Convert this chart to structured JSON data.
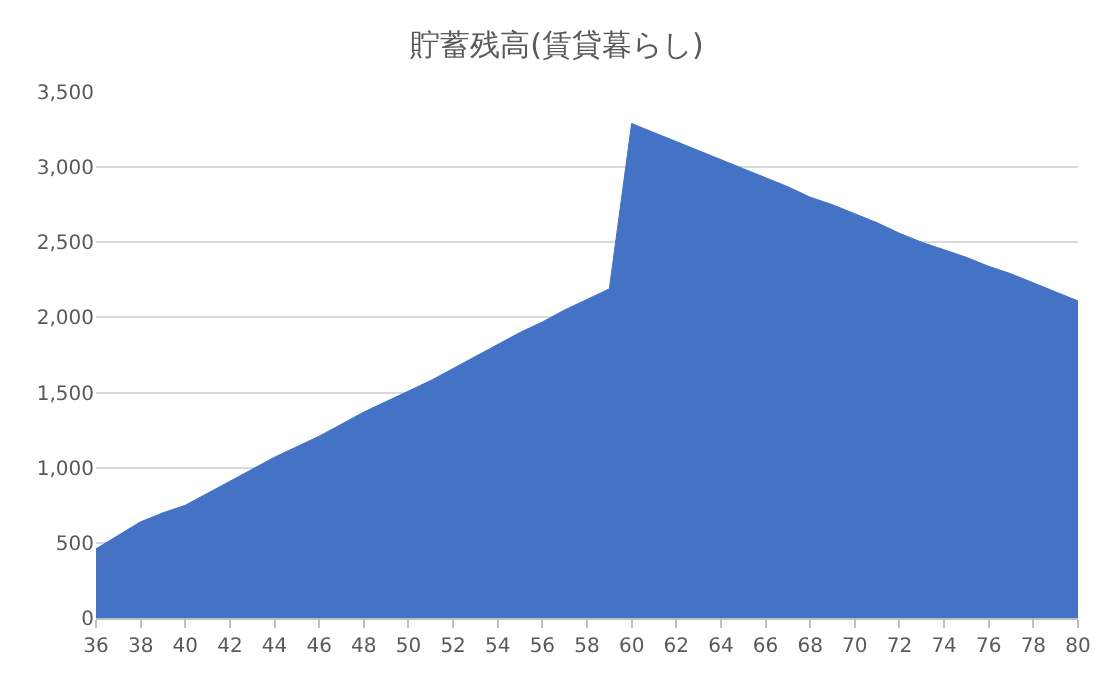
{
  "chart_data": {
    "type": "area",
    "title": "貯蓄残高(賃貸暮らし)",
    "categories": [
      "36",
      null,
      "38",
      null,
      "40",
      null,
      "42",
      null,
      "44",
      null,
      "46",
      null,
      "48",
      null,
      "50",
      null,
      "52",
      null,
      "54",
      null,
      "56",
      null,
      "58",
      null,
      "60",
      null,
      "62",
      null,
      "64",
      null,
      "66",
      null,
      "68",
      null,
      "70",
      null,
      "72",
      null,
      "74",
      null,
      "76",
      null,
      "78",
      null,
      "80"
    ],
    "values": [
      460,
      550,
      640,
      700,
      750,
      830,
      910,
      990,
      1070,
      1140,
      1210,
      1290,
      1370,
      1440,
      1510,
      1580,
      1660,
      1740,
      1820,
      1900,
      1970,
      2050,
      2120,
      2190,
      3290,
      3230,
      3170,
      3110,
      3050,
      2990,
      2930,
      2870,
      2800,
      2750,
      2690,
      2630,
      2560,
      2500,
      2450,
      2400,
      2340,
      2290,
      2230,
      2170,
      2110
    ],
    "color": "#4472c4",
    "ylim": [
      0,
      3500
    ],
    "yticks": [
      0,
      {
        "value": 500,
        "label": "500"
      },
      {
        "value": 1000,
        "label": "1,000"
      },
      {
        "value": 1500,
        "label": "1,500"
      },
      {
        "value": 2000,
        "label": "2,000"
      },
      {
        "value": 2500,
        "label": "2,500"
      },
      {
        "value": 3000,
        "label": "3,000"
      },
      {
        "value": 3500,
        "label": "3,500"
      }
    ],
    "grid": "y"
  }
}
